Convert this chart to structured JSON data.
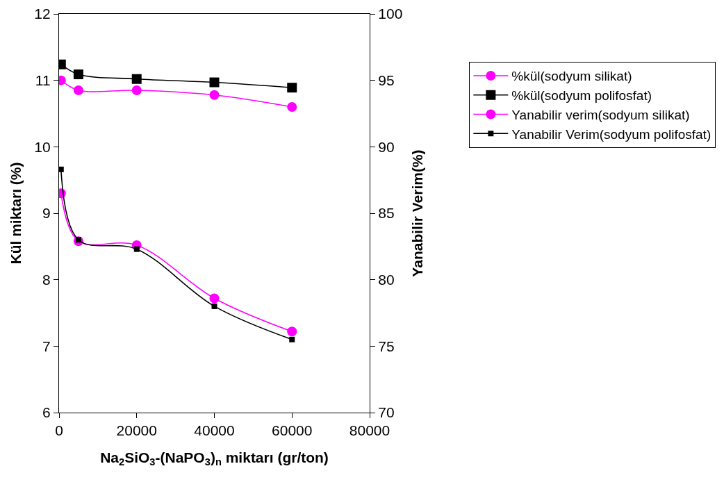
{
  "chart_data": {
    "type": "line",
    "xlabel": "Na$_{2}$SiO$_{3}$-(NaPO$_{3}$)$_{n}$ miktarı (gr/ton)",
    "ylabel": "Kül miktarı (%)",
    "y2label": "Yanabilir Verim(%)",
    "x": [
      500,
      5000,
      20000,
      40000,
      60000
    ],
    "xlim": [
      0,
      80000
    ],
    "xticks": [
      0,
      20000,
      40000,
      60000,
      80000
    ],
    "ylim": [
      6,
      12
    ],
    "yticks": [
      6,
      7,
      8,
      9,
      10,
      11,
      12
    ],
    "y2lim": [
      70,
      100
    ],
    "y2ticks": [
      70,
      75,
      80,
      85,
      90,
      95,
      100
    ],
    "grid": false,
    "legend": "right",
    "line_style": "solid",
    "series": [
      {
        "name": "%kül(sodyum silikat)",
        "color": "#ff00ff",
        "marker": "circle",
        "values": [
          11.0,
          10.85,
          10.85,
          10.78,
          10.6
        ]
      },
      {
        "name": "%kül(sodyum polifosfat)",
        "color": "#000000",
        "marker": "square",
        "values": [
          11.24,
          11.09,
          11.02,
          10.97,
          10.89
        ]
      },
      {
        "name": "Yanabilir verim(sodyum silikat)",
        "color": "#ff00ff",
        "marker": "circle",
        "axis": "y2",
        "values": [
          86.5,
          82.9,
          82.6,
          78.6,
          76.1
        ]
      },
      {
        "name": "Yanabilir Verim(sodyum polifosfat)",
        "color": "#000000",
        "marker": "square",
        "axis": "y2",
        "values": [
          88.3,
          83.0,
          82.3,
          78.0,
          75.5
        ]
      }
    ]
  }
}
